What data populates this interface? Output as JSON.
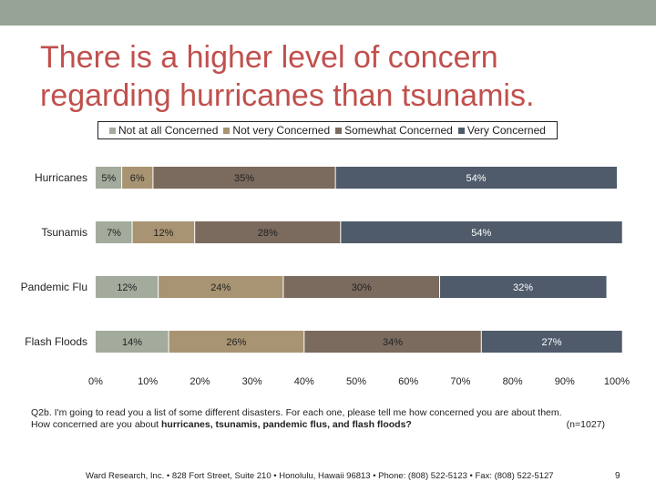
{
  "title": "There is a higher level of concern regarding hurricanes than tsunamis.",
  "colors": {
    "top_band": "#96a396",
    "title": "#c0504d",
    "not_at_all": "#a3ab9d",
    "not_very": "#a89472",
    "somewhat": "#7b6a5e",
    "very": "#4f5b6b"
  },
  "legend": [
    {
      "label": "Not at all Concerned",
      "color": "#a3ab9d"
    },
    {
      "label": "Not very Concerned",
      "color": "#a89472"
    },
    {
      "label": "Somewhat Concerned",
      "color": "#7b6a5e"
    },
    {
      "label": "Very Concerned",
      "color": "#4f5b6b"
    }
  ],
  "chart_data": {
    "type": "bar",
    "orientation": "horizontal",
    "stacked": true,
    "categories": [
      "Hurricanes",
      "Tsunamis",
      "Pandemic Flu",
      "Flash Floods"
    ],
    "series": [
      {
        "name": "Not at all Concerned",
        "values": [
          5,
          7,
          12,
          14
        ],
        "labels": [
          "5%",
          "7%",
          "12%",
          "14%"
        ]
      },
      {
        "name": "Not very Concerned",
        "values": [
          6,
          12,
          24,
          26
        ],
        "labels": [
          "6%",
          "12%",
          "24%",
          "26%"
        ]
      },
      {
        "name": "Somewhat Concerned",
        "values": [
          35,
          28,
          30,
          34
        ],
        "labels": [
          "35%",
          "28%",
          "30%",
          "34%"
        ]
      },
      {
        "name": "Very Concerned",
        "values": [
          54,
          54,
          32,
          27
        ],
        "labels": [
          "54%",
          "54%",
          "32%",
          "27%"
        ]
      }
    ],
    "xlim": [
      0,
      100
    ],
    "x_ticks": [
      "0%",
      "10%",
      "20%",
      "30%",
      "40%",
      "50%",
      "60%",
      "70%",
      "80%",
      "90%",
      "100%"
    ],
    "grid": false,
    "legend_position": "top"
  },
  "question": {
    "line1": "Q2b. I'm going to read you a list of some different disasters. For each one, please tell me how concerned you are about them.",
    "line2_prefix": "How concerned are you about ",
    "line2_bold": "hurricanes, tsunamis, pandemic flus, and flash floods?",
    "n": "(n=1027)"
  },
  "footer": "Ward Research, Inc. • 828 Fort Street, Suite 210 • Honolulu, Hawaii 96813 • Phone: (808) 522-5123 • Fax: (808) 522-5127",
  "page_number": "9"
}
